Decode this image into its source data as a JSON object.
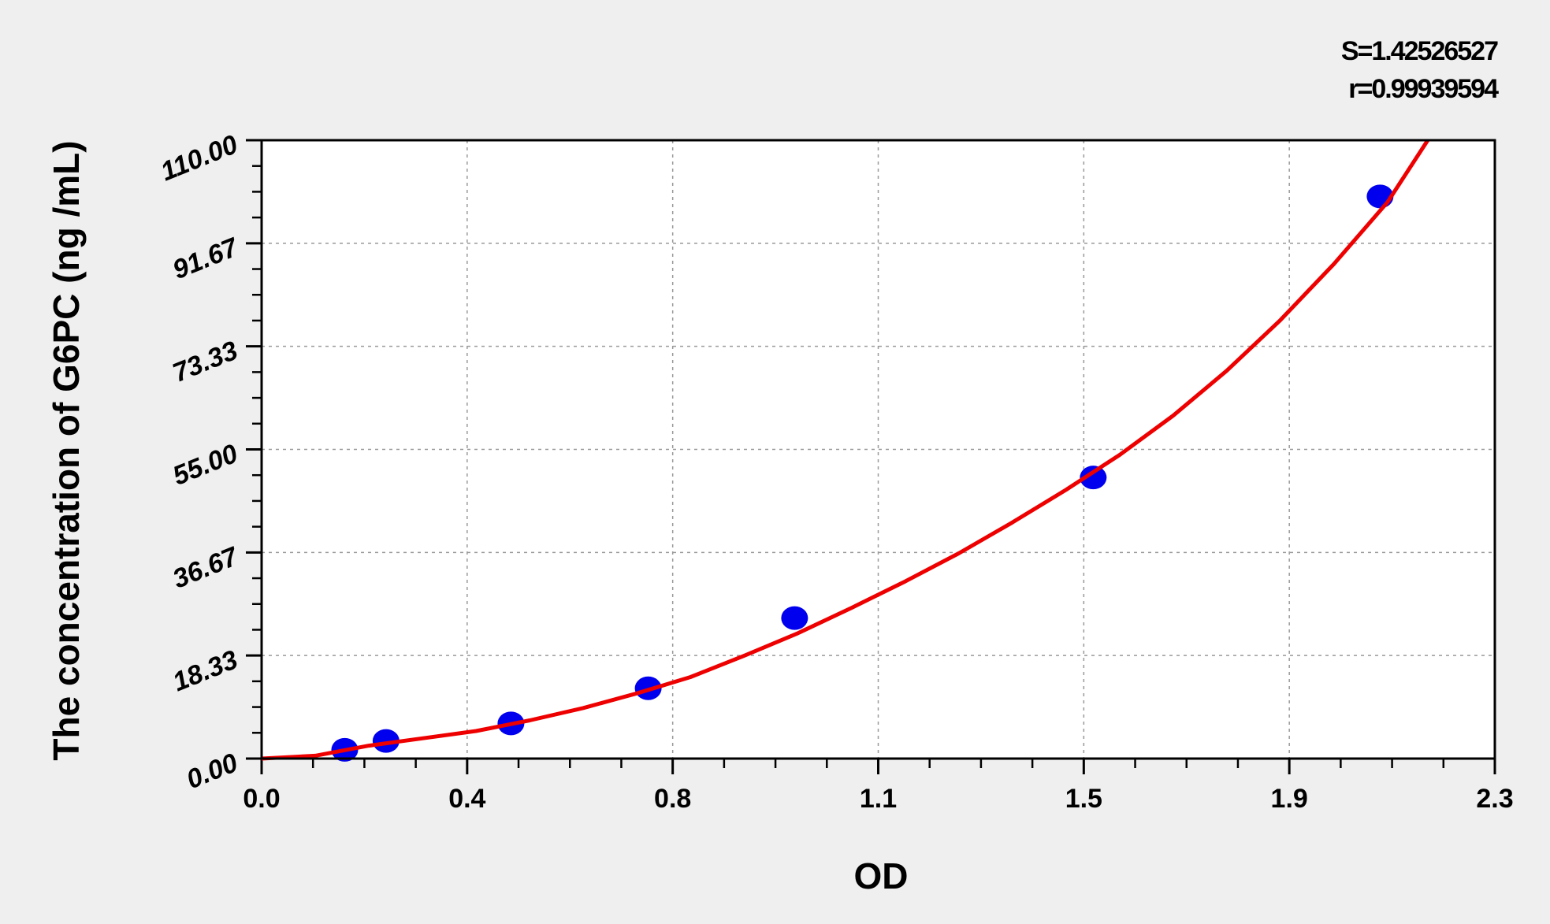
{
  "chart_data": {
    "type": "scatter",
    "title": "",
    "xlabel": "OD",
    "ylabel": "The concentration of G6PC (ng /mL)",
    "xlim": [
      0,
      2.3
    ],
    "ylim": [
      0,
      110
    ],
    "x_tick_labels": [
      "0.0",
      "0.4",
      "0.8",
      "1.1",
      "1.5",
      "1.9",
      "2.3"
    ],
    "y_tick_labels": [
      "0.00",
      "18.33",
      "36.67",
      "55.00",
      "73.33",
      "91.67",
      "110.00"
    ],
    "grid": true,
    "annotations": [
      "S=1.42526527",
      "r=0.99939594"
    ],
    "series": [
      {
        "type": "scatter",
        "color": "#0000ee",
        "x": [
          0.155,
          0.232,
          0.465,
          0.721,
          0.994,
          1.551,
          2.086
        ],
        "y": [
          1.56,
          3.13,
          6.25,
          12.5,
          25,
          50,
          100
        ]
      },
      {
        "type": "line",
        "color": "#ee0000",
        "x": [
          0,
          0.1,
          0.2,
          0.3,
          0.4,
          0.5,
          0.6,
          0.7,
          0.8,
          0.9,
          1.0,
          1.1,
          1.2,
          1.3,
          1.4,
          1.5,
          1.6,
          1.7,
          1.8,
          1.9,
          2.0,
          2.1,
          2.175
        ],
        "y": [
          0,
          0.5,
          2.3,
          3.6,
          4.9,
          6.8,
          9.0,
          11.6,
          14.5,
          18.3,
          22.3,
          26.8,
          31.5,
          36.5,
          42,
          47.8,
          54,
          61,
          69,
          78,
          88,
          99,
          110
        ]
      }
    ]
  }
}
